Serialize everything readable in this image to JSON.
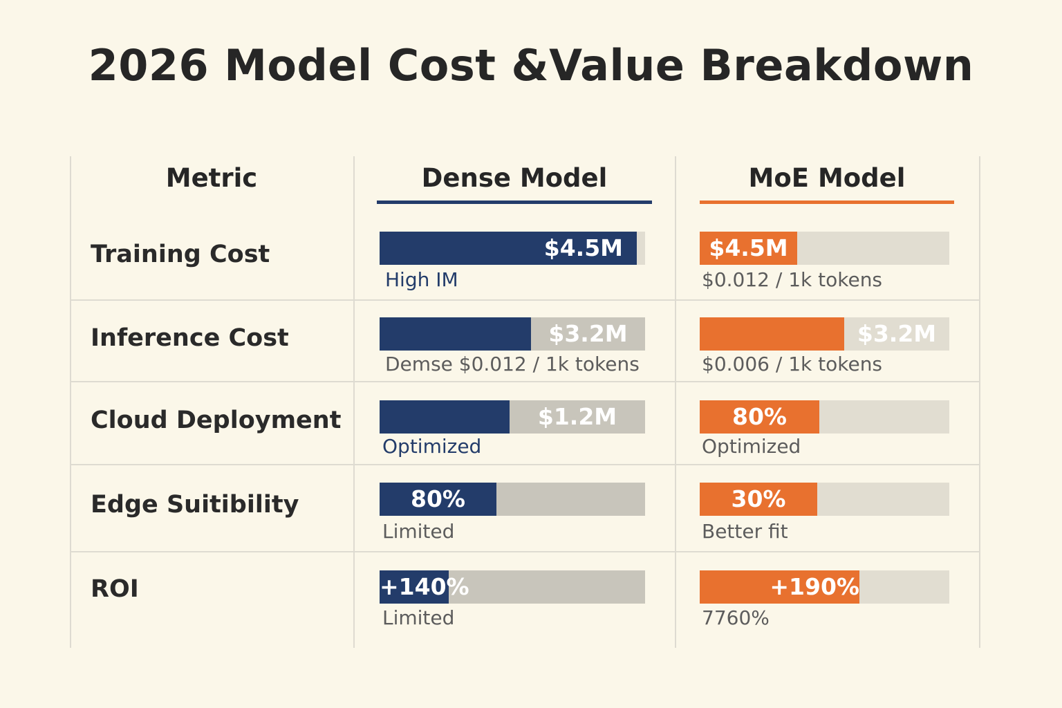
{
  "title": "2026 Model Cost &Value Breakdown",
  "colors": {
    "dense": "#233c6a",
    "moe": "#e8712f",
    "track_dense": "#c8c5bb",
    "track_moe": "#e1ddd1"
  },
  "headers": {
    "metric": "Metric",
    "dense": "Dense Model",
    "moe": "MoE Model"
  },
  "rows": [
    {
      "metric": "Training Cost",
      "dense": {
        "label": "$4.5M",
        "fill": 0.97,
        "note": "High IM"
      },
      "moe": {
        "label": "$4.5M",
        "fill": 0.39,
        "note": "$0.012 / 1k tokens"
      }
    },
    {
      "metric": "Inference Cost",
      "dense": {
        "label": "$3.2M",
        "fill": 0.57,
        "note": "Demse $0.012 / 1k tokens"
      },
      "moe": {
        "label": "$3.2M",
        "fill": 0.58,
        "note": "$0.006 / 1k tokens"
      }
    },
    {
      "metric": "Cloud Deployment",
      "dense": {
        "label": "$1.2M",
        "fill": 0.49,
        "note": "Optimized"
      },
      "moe": {
        "label": "80%",
        "fill": 0.48,
        "note": "Optimized"
      }
    },
    {
      "metric": "Edge Suitibility",
      "dense": {
        "label": "80%",
        "fill": 0.44,
        "note": "Limited"
      },
      "moe": {
        "label": "30%",
        "fill": 0.47,
        "note": "Better fit"
      }
    },
    {
      "metric": "ROI",
      "dense": {
        "label": "+140%",
        "fill": 0.26,
        "note": "Limited"
      },
      "moe": {
        "label": "+190%",
        "fill": 0.64,
        "note": "7760%"
      }
    }
  ],
  "chart_data": {
    "type": "table",
    "title": "2026 Model Cost &Value Breakdown",
    "columns": [
      "Metric",
      "Dense Model",
      "MoE Model"
    ],
    "series": [
      {
        "name": "Dense Model",
        "values": [
          "$4.5M",
          "$3.2M",
          "$1.2M",
          "80%",
          "+140%"
        ]
      },
      {
        "name": "MoE Model",
        "values": [
          "$4.5M",
          "$3.2M",
          "80%",
          "30%",
          "+190%"
        ]
      }
    ],
    "categories": [
      "Training Cost",
      "Inference Cost",
      "Cloud Deployment",
      "Edge Suitibility",
      "ROI"
    ]
  }
}
